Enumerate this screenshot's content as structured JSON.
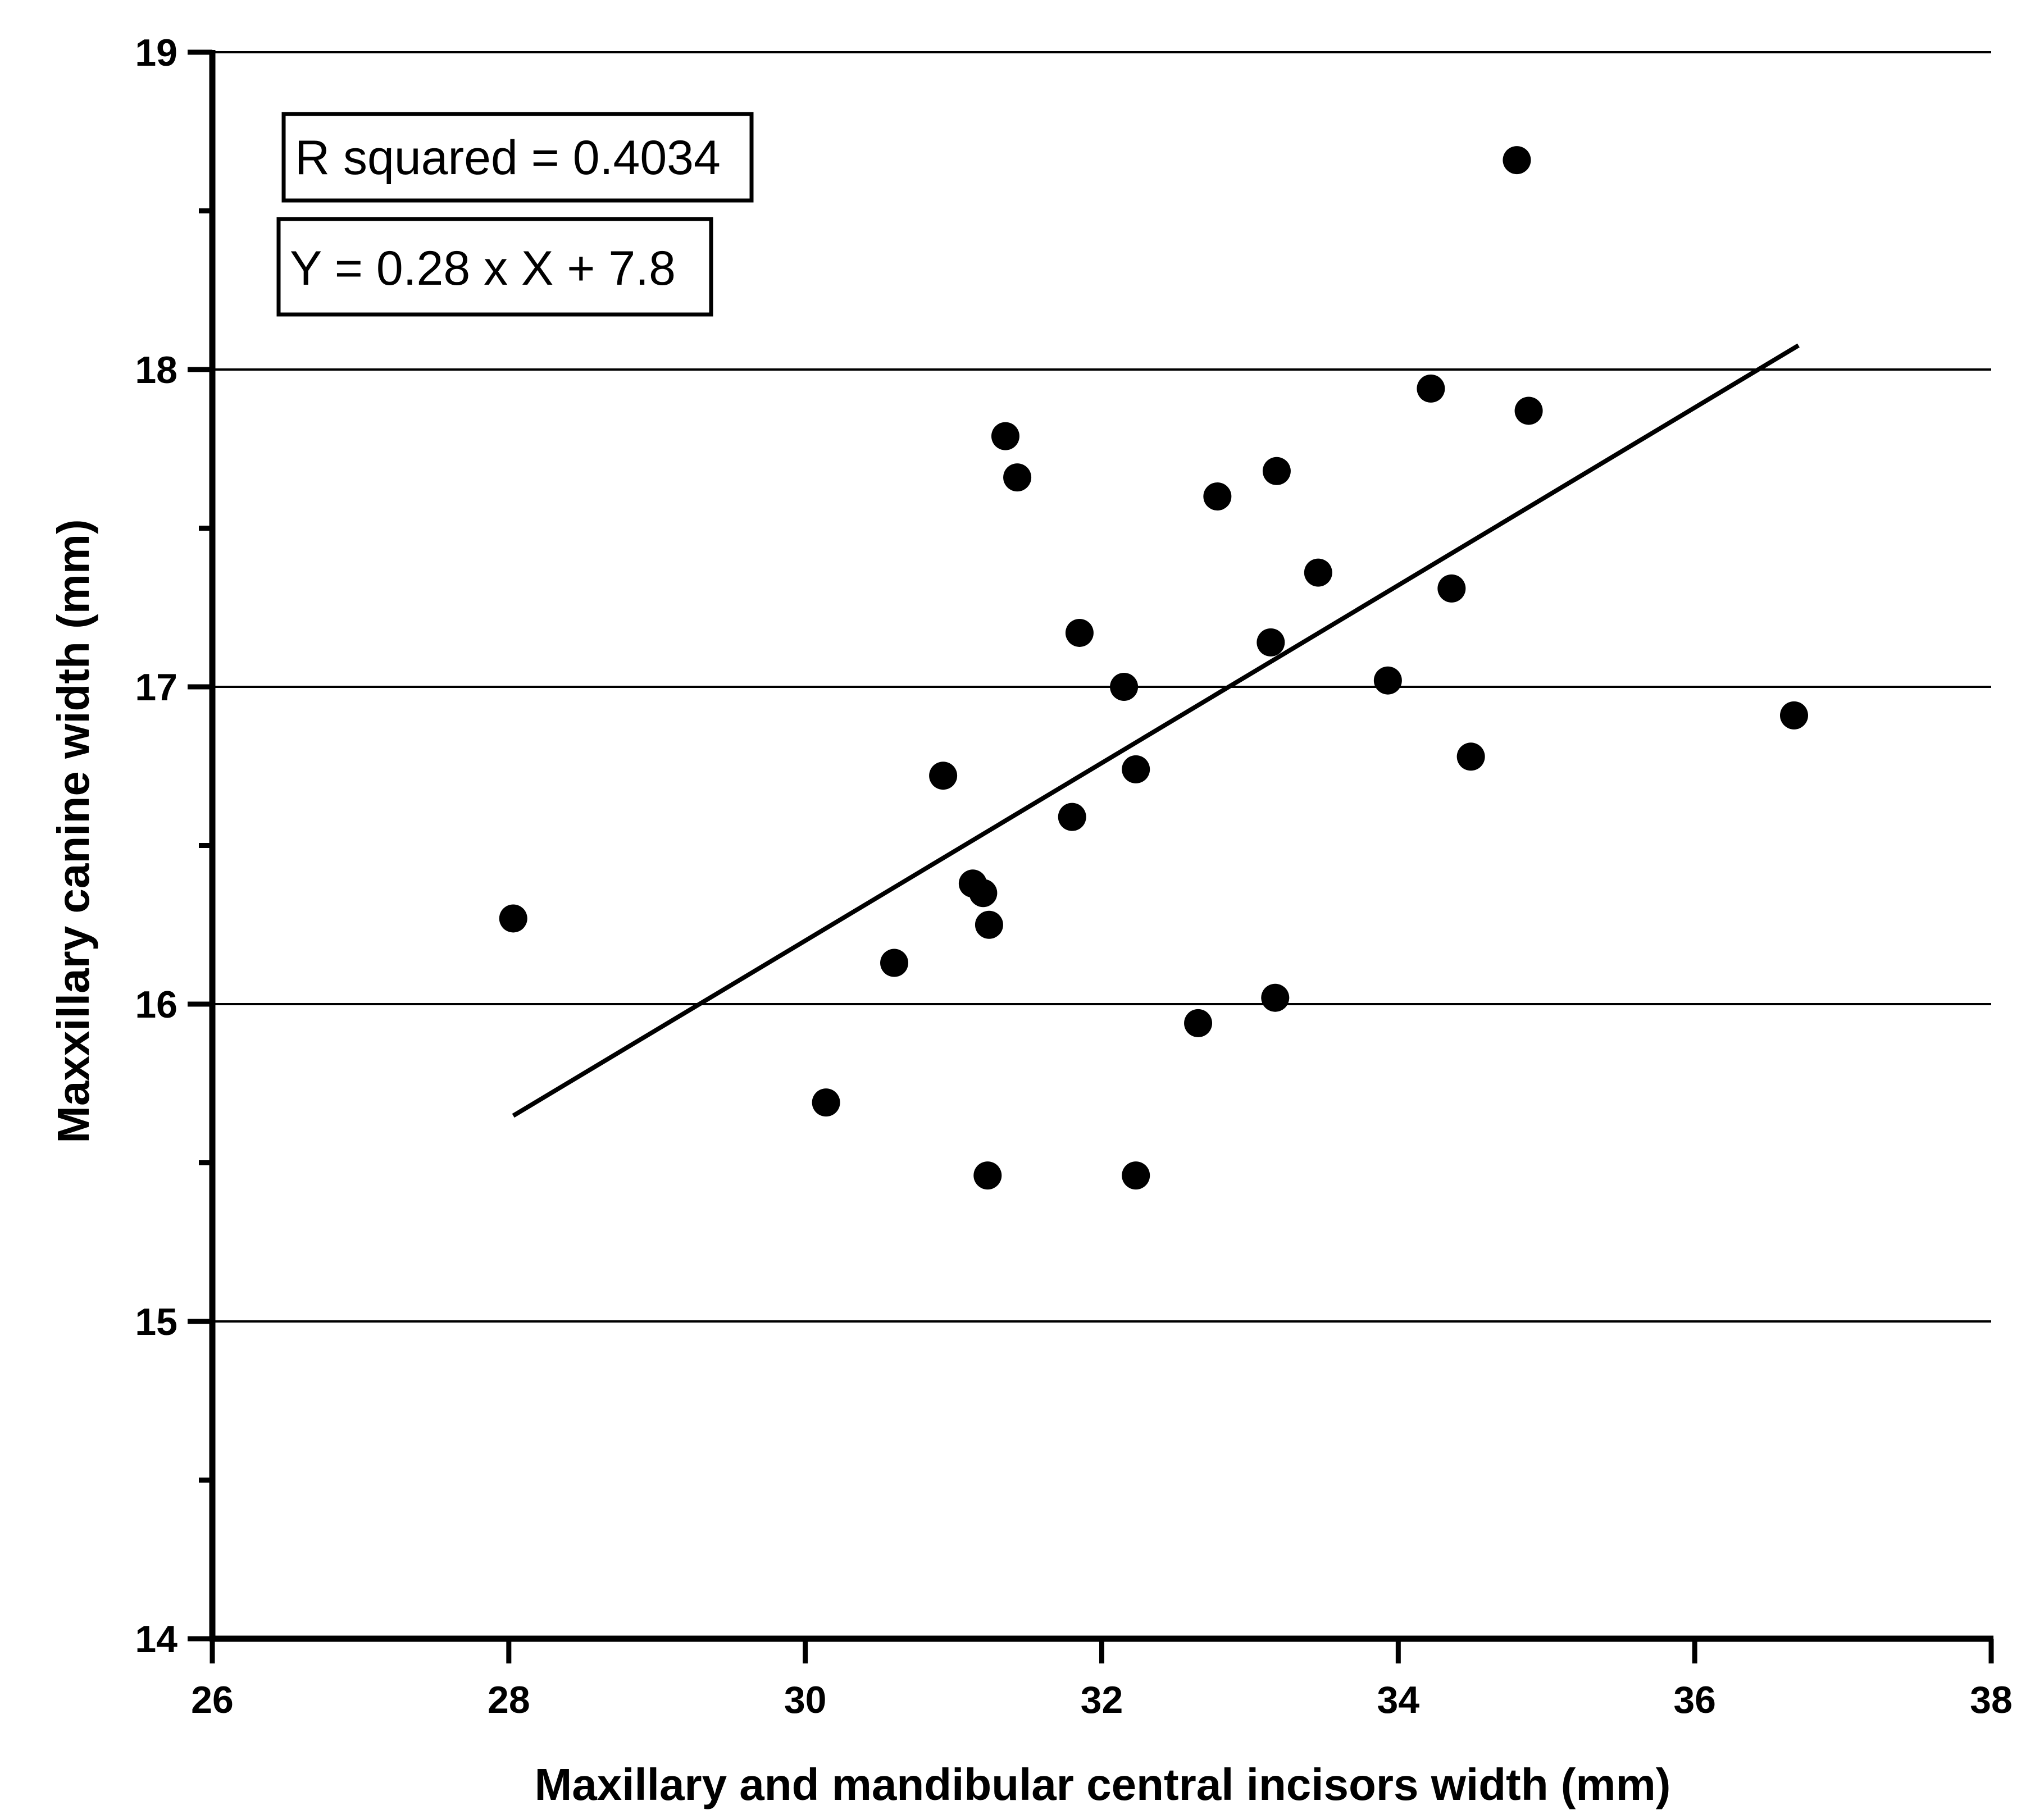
{
  "chart_data": {
    "type": "scatter",
    "xlabel": "Maxillary and mandibular central incisors width (mm)",
    "ylabel": "Maxxillary canine width (mm)",
    "xlim": [
      26,
      38
    ],
    "ylim": [
      14,
      19
    ],
    "x_ticks": [
      26,
      28,
      30,
      32,
      34,
      36,
      38
    ],
    "y_ticks": [
      14,
      15,
      16,
      17,
      18,
      19
    ],
    "y_minor_step": 0.5,
    "grid": "horizontal",
    "annotations": [
      "R squared = 0.4034",
      "Y = 0.28 x X + 7.8"
    ],
    "regression": {
      "slope": 0.28,
      "intercept": 7.8,
      "x_range": [
        28.03,
        36.7
      ]
    },
    "series": [
      {
        "color": "#000000",
        "points": [
          {
            "x": 28.03,
            "y": 16.27
          },
          {
            "x": 30.14,
            "y": 15.69
          },
          {
            "x": 30.6,
            "y": 16.13
          },
          {
            "x": 30.93,
            "y": 16.72
          },
          {
            "x": 31.13,
            "y": 16.38
          },
          {
            "x": 31.2,
            "y": 16.35
          },
          {
            "x": 31.24,
            "y": 16.25
          },
          {
            "x": 31.23,
            "y": 15.46
          },
          {
            "x": 31.35,
            "y": 17.79
          },
          {
            "x": 31.43,
            "y": 17.66
          },
          {
            "x": 31.8,
            "y": 16.59
          },
          {
            "x": 31.85,
            "y": 17.17
          },
          {
            "x": 32.15,
            "y": 17.0
          },
          {
            "x": 32.23,
            "y": 16.74
          },
          {
            "x": 32.23,
            "y": 15.46
          },
          {
            "x": 32.65,
            "y": 15.94
          },
          {
            "x": 32.78,
            "y": 17.6
          },
          {
            "x": 33.14,
            "y": 17.14
          },
          {
            "x": 33.17,
            "y": 16.02
          },
          {
            "x": 33.18,
            "y": 17.68
          },
          {
            "x": 33.46,
            "y": 17.36
          },
          {
            "x": 33.93,
            "y": 17.02
          },
          {
            "x": 34.22,
            "y": 17.94
          },
          {
            "x": 34.36,
            "y": 17.31
          },
          {
            "x": 34.49,
            "y": 16.78
          },
          {
            "x": 34.8,
            "y": 18.66
          },
          {
            "x": 34.88,
            "y": 17.87
          },
          {
            "x": 36.67,
            "y": 16.91
          }
        ]
      }
    ]
  }
}
